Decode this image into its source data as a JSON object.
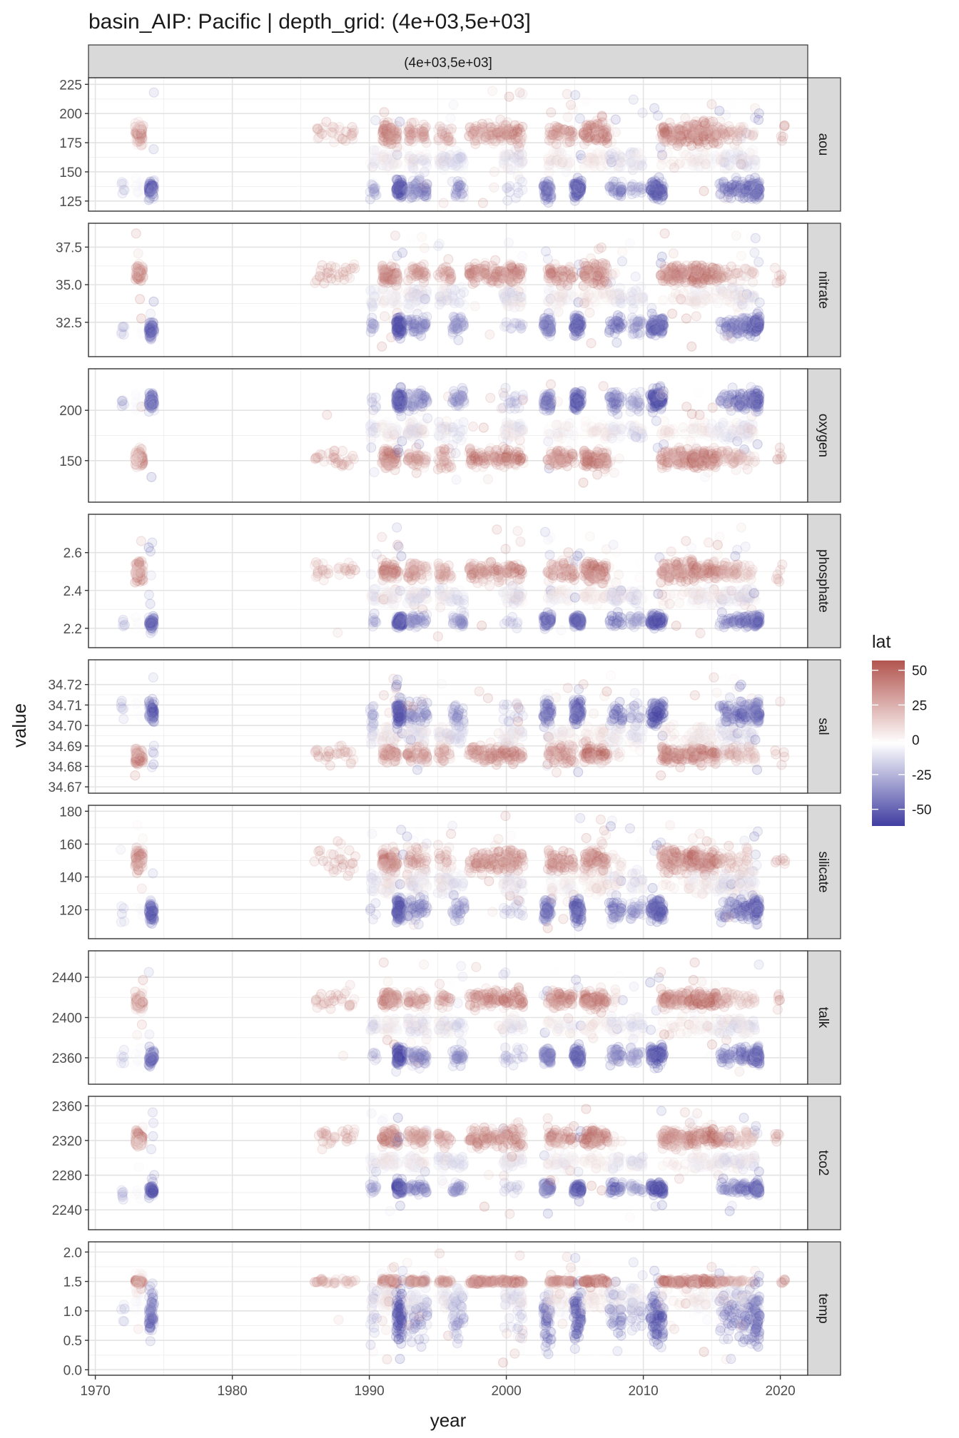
{
  "chart_data": {
    "type": "scatter",
    "title": "basin_AIP: Pacific | depth_grid: (4e+03,5e+03]",
    "strip_top": "(4e+03,5e+03]",
    "xlabel": "year",
    "ylabel": "value",
    "xlim": [
      1969.5,
      2022
    ],
    "x_ticks": [
      1970,
      1980,
      1990,
      2000,
      2010,
      2020
    ],
    "x_tick_labels": [
      "1970",
      "1980",
      "1990",
      "2000",
      "2010",
      "2020"
    ],
    "legend": {
      "title": "lat",
      "position": "right",
      "range": [
        -62,
        57
      ],
      "ticks": [
        50,
        25,
        0,
        -25,
        -50
      ],
      "tick_labels": [
        "50",
        "25",
        "0",
        "-25",
        "-50"
      ],
      "colors": {
        "high": "#B2544E",
        "mid": "#FFFFFF",
        "low": "#3F3DA0"
      }
    },
    "panels": [
      {
        "name": "aou",
        "ylim": [
          120,
          227
        ],
        "ticks": [
          125,
          150,
          175,
          200,
          225
        ],
        "tick_labels": [
          "125",
          "150",
          "175",
          "200",
          "225"
        ],
        "north_level": 183,
        "south_level": 135,
        "mid_level": 160,
        "south_spread": 9,
        "north_spread": 11,
        "early_north": 183,
        "early_south": 135,
        "scatter_low": 123,
        "scatter_high": 221
      },
      {
        "name": "nitrate",
        "ylim": [
          30.5,
          38.8
        ],
        "ticks": [
          32.5,
          35.0,
          37.5
        ],
        "tick_labels": [
          "32.5",
          "35.0",
          "37.5"
        ],
        "north_level": 35.7,
        "south_level": 32.3,
        "mid_level": 34.2,
        "south_spread": 0.7,
        "north_spread": 0.8,
        "early_north": 35.8,
        "early_south": 32.0,
        "scatter_low": 30.8,
        "scatter_high": 38.5
      },
      {
        "name": "oxygen",
        "ylim": [
          113,
          237
        ],
        "ticks": [
          150,
          200
        ],
        "tick_labels": [
          "150",
          "200"
        ],
        "north_level": 152,
        "south_level": 210,
        "mid_level": 180,
        "south_spread": 11,
        "north_spread": 11,
        "early_north": 152,
        "early_south": 208,
        "scatter_low": 127,
        "scatter_high": 227
      },
      {
        "name": "phosphate",
        "ylim": [
          2.12,
          2.78
        ],
        "ticks": [
          2.2,
          2.4,
          2.6
        ],
        "tick_labels": [
          "2.2",
          "2.4",
          "2.6"
        ],
        "north_level": 2.5,
        "south_level": 2.24,
        "mid_level": 2.37,
        "south_spread": 0.04,
        "north_spread": 0.06,
        "early_north": 2.5,
        "early_south": 2.22,
        "scatter_low": 2.15,
        "scatter_high": 2.74
      },
      {
        "name": "sal",
        "ylim": [
          34.669,
          34.73
        ],
        "ticks": [
          34.67,
          34.68,
          34.69,
          34.7,
          34.71,
          34.72
        ],
        "tick_labels": [
          "34.67",
          "34.68",
          "34.69",
          "34.70",
          "34.71",
          "34.72"
        ],
        "north_level": 34.686,
        "south_level": 34.706,
        "mid_level": 34.695,
        "south_spread": 0.007,
        "north_spread": 0.005,
        "early_north": 34.685,
        "early_south": 34.707,
        "scatter_low": 34.675,
        "scatter_high": 34.725
      },
      {
        "name": "silicate",
        "ylim": [
          105,
          181
        ],
        "ticks": [
          120,
          140,
          160,
          180
        ],
        "tick_labels": [
          "120",
          "140",
          "160",
          "180"
        ],
        "north_level": 150,
        "south_level": 120,
        "mid_level": 136,
        "south_spread": 8,
        "north_spread": 9,
        "early_north": 150,
        "early_south": 119,
        "scatter_low": 108,
        "scatter_high": 178
      },
      {
        "name": "talk",
        "ylim": [
          2338,
          2462
        ],
        "ticks": [
          2360,
          2400,
          2440
        ],
        "tick_labels": [
          "2360",
          "2400",
          "2440"
        ],
        "north_level": 2418,
        "south_level": 2362,
        "mid_level": 2392,
        "south_spread": 10,
        "north_spread": 10,
        "early_north": 2415,
        "early_south": 2360,
        "scatter_low": 2345,
        "scatter_high": 2456
      },
      {
        "name": "tco2",
        "ylim": [
          2222,
          2366
        ],
        "ticks": [
          2240,
          2280,
          2320,
          2360
        ],
        "tick_labels": [
          "2240",
          "2280",
          "2320",
          "2360"
        ],
        "north_level": 2323,
        "south_level": 2265,
        "mid_level": 2295,
        "south_spread": 8,
        "north_spread": 12,
        "early_north": 2323,
        "early_south": 2262,
        "scatter_low": 2230,
        "scatter_high": 2358
      },
      {
        "name": "temp",
        "ylim": [
          -0.02,
          2.1
        ],
        "ticks": [
          0.0,
          0.5,
          1.0,
          1.5,
          2.0
        ],
        "tick_labels": [
          "0.0",
          "0.5",
          "1.0",
          "1.5",
          "2.0"
        ],
        "north_level": 1.5,
        "south_level": 0.9,
        "mid_level": 1.2,
        "south_spread": 0.5,
        "north_spread": 0.05,
        "early_north": 1.5,
        "early_south": 1.0,
        "scatter_low": 0.1,
        "scatter_high": 2.0
      }
    ],
    "cruises": [
      {
        "year": 1972.0,
        "width": 0.3,
        "lat_min": -35,
        "lat_max": -15,
        "n": 6
      },
      {
        "year": 1973.2,
        "width": 0.6,
        "lat_min": -5,
        "lat_max": 52,
        "n": 80
      },
      {
        "year": 1974.1,
        "width": 0.4,
        "lat_min": -60,
        "lat_max": -20,
        "n": 60
      },
      {
        "year": 1987.5,
        "width": 3.0,
        "lat_min": 20,
        "lat_max": 40,
        "n": 30
      },
      {
        "year": 1990.3,
        "width": 0.5,
        "lat_min": -40,
        "lat_max": 10,
        "n": 30
      },
      {
        "year": 1991.5,
        "width": 1.2,
        "lat_min": -10,
        "lat_max": 50,
        "n": 130
      },
      {
        "year": 1992.2,
        "width": 0.5,
        "lat_min": -62,
        "lat_max": -30,
        "n": 90
      },
      {
        "year": 1993.5,
        "width": 1.5,
        "lat_min": -50,
        "lat_max": 45,
        "n": 150
      },
      {
        "year": 1995.5,
        "width": 1.0,
        "lat_min": -20,
        "lat_max": 45,
        "n": 60
      },
      {
        "year": 1996.5,
        "width": 0.9,
        "lat_min": -45,
        "lat_max": -5,
        "n": 50
      },
      {
        "year": 1998.5,
        "width": 2.5,
        "lat_min": 15,
        "lat_max": 50,
        "n": 80
      },
      {
        "year": 2000.5,
        "width": 1.5,
        "lat_min": -30,
        "lat_max": 55,
        "n": 120
      },
      {
        "year": 2003.0,
        "width": 0.6,
        "lat_min": -55,
        "lat_max": -20,
        "n": 60
      },
      {
        "year": 2004.0,
        "width": 2.0,
        "lat_min": -10,
        "lat_max": 50,
        "n": 110
      },
      {
        "year": 2005.2,
        "width": 0.6,
        "lat_min": -62,
        "lat_max": -25,
        "n": 80
      },
      {
        "year": 2006.5,
        "width": 1.8,
        "lat_min": 0,
        "lat_max": 55,
        "n": 130
      },
      {
        "year": 2008.0,
        "width": 1.0,
        "lat_min": -60,
        "lat_max": 20,
        "n": 70
      },
      {
        "year": 2009.5,
        "width": 1.0,
        "lat_min": -40,
        "lat_max": 10,
        "n": 60
      },
      {
        "year": 2011.0,
        "width": 1.0,
        "lat_min": -62,
        "lat_max": -30,
        "n": 90
      },
      {
        "year": 2012.5,
        "width": 2.5,
        "lat_min": 10,
        "lat_max": 50,
        "n": 120
      },
      {
        "year": 2014.5,
        "width": 2.0,
        "lat_min": -10,
        "lat_max": 57,
        "n": 150
      },
      {
        "year": 2016.3,
        "width": 1.5,
        "lat_min": -55,
        "lat_max": 40,
        "n": 110
      },
      {
        "year": 2017.6,
        "width": 1.2,
        "lat_min": -62,
        "lat_max": 30,
        "n": 110
      },
      {
        "year": 2018.3,
        "width": 0.4,
        "lat_min": -60,
        "lat_max": -20,
        "n": 60
      },
      {
        "year": 2020.0,
        "width": 0.8,
        "lat_min": 30,
        "lat_max": 40,
        "n": 6
      }
    ]
  }
}
